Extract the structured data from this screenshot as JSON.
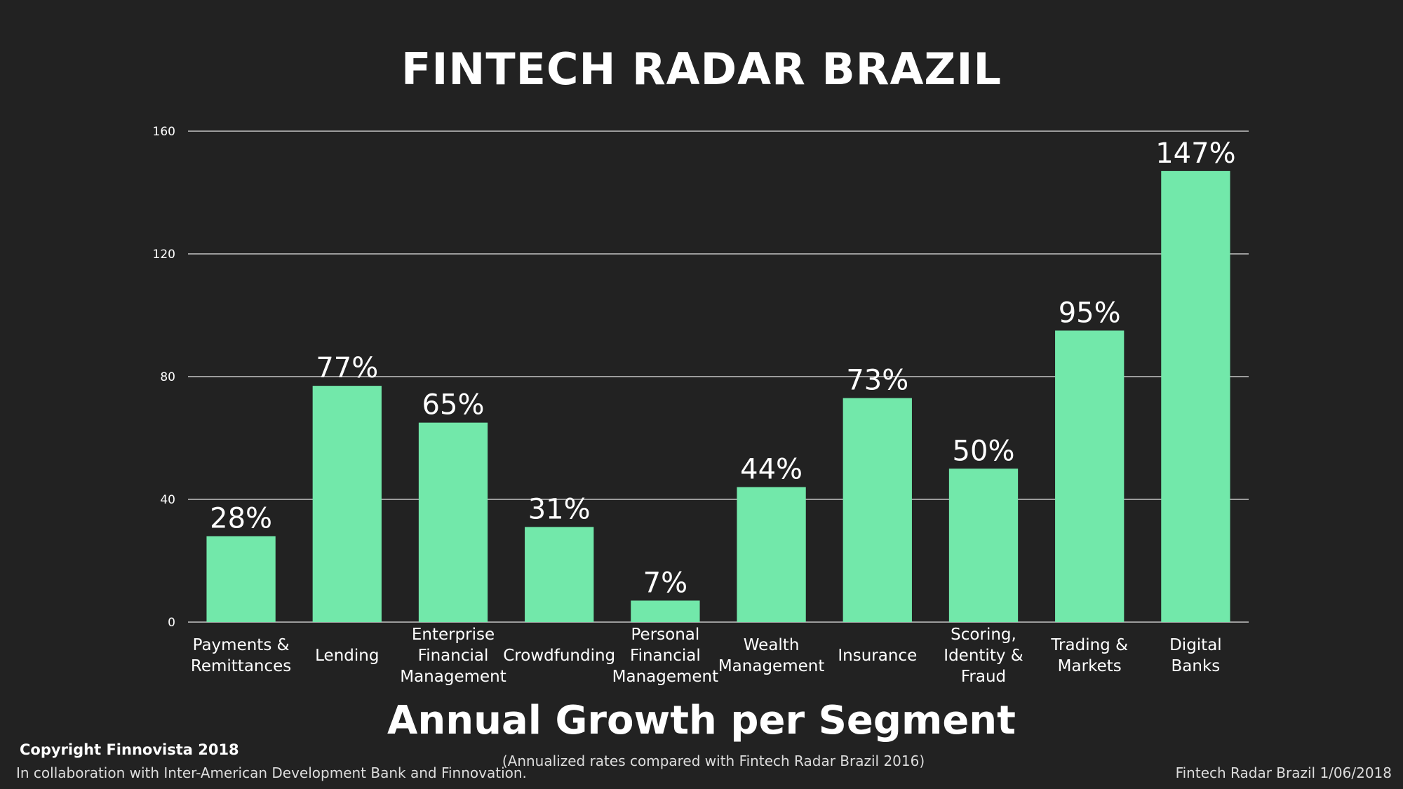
{
  "page": {
    "title": "FINTECH RADAR BRAZIL",
    "subtitle": "Annual Growth per Segment",
    "note": "(Annualized rates compared with Fintech Radar Brazil 2016)",
    "copyright": "Copyright Finnovista 2018",
    "collaboration": "In collaboration with Inter-American Development Bank and Finnovation.",
    "dateline": "Fintech Radar Brazil 1/06/2018"
  },
  "colors": {
    "background": "#222222",
    "bar": "#72e8aa",
    "grid": "#e6e6e6",
    "text": "#ffffff"
  },
  "chart_data": {
    "type": "bar",
    "title": "Annual Growth per Segment",
    "xlabel": "",
    "ylabel": "",
    "ylim": [
      0,
      160
    ],
    "yticks": [
      "0",
      "40",
      "80",
      "120",
      "160"
    ],
    "grid": true,
    "categories": [
      [
        "Payments &",
        "Remittances"
      ],
      [
        "Lending"
      ],
      [
        "Enterprise",
        "Financial",
        "Management"
      ],
      [
        "Crowdfunding"
      ],
      [
        "Personal",
        "Financial",
        "Management"
      ],
      [
        "Wealth",
        "Management"
      ],
      [
        "Insurance"
      ],
      [
        "Scoring,",
        "Identity &",
        "Fraud"
      ],
      [
        "Trading &",
        "Markets"
      ],
      [
        "Digital",
        "Banks"
      ]
    ],
    "values": [
      28,
      77,
      65,
      31,
      7,
      44,
      73,
      50,
      95,
      147
    ],
    "data_labels": [
      "28%",
      "77%",
      "65%",
      "31%",
      "7%",
      "44%",
      "73%",
      "50%",
      "95%",
      "147%"
    ]
  }
}
